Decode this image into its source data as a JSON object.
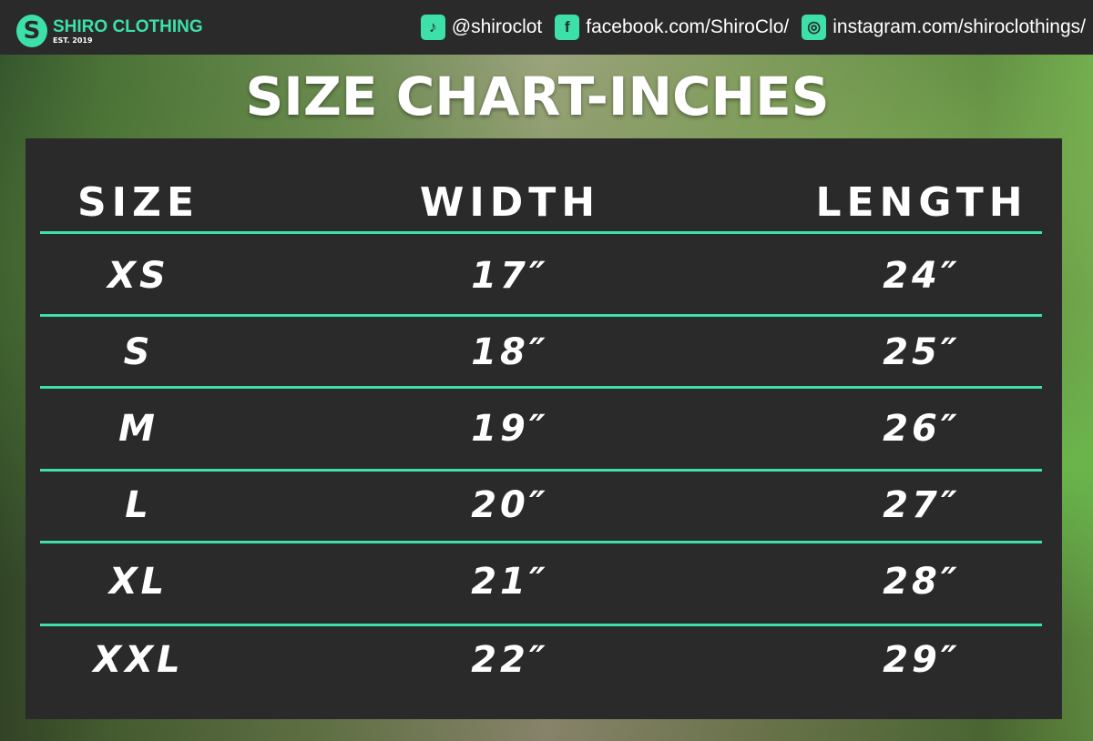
{
  "brand": {
    "name": "SHIRO CLOTHING",
    "est": "EST. 2019",
    "accent": "#3de0a8"
  },
  "socials": [
    {
      "icon": "tiktok-icon",
      "text": "@shiroclot"
    },
    {
      "icon": "facebook-icon",
      "text": "facebook.com/ShiroClo/"
    },
    {
      "icon": "instagram-icon",
      "text": "instagram.com/shiroclothings/"
    }
  ],
  "title": "SIZE CHART-INCHES",
  "table": {
    "headers": [
      "SIZE",
      "WIDTH",
      "LENGTH"
    ],
    "rows": [
      [
        "XS",
        "17″",
        "24″"
      ],
      [
        "S",
        "18″",
        "25″"
      ],
      [
        "M",
        "19″",
        "26″"
      ],
      [
        "L",
        "20″",
        "27″"
      ],
      [
        "XL",
        "21″",
        "28″"
      ],
      [
        "XXL",
        "22″",
        "29″"
      ]
    ]
  }
}
